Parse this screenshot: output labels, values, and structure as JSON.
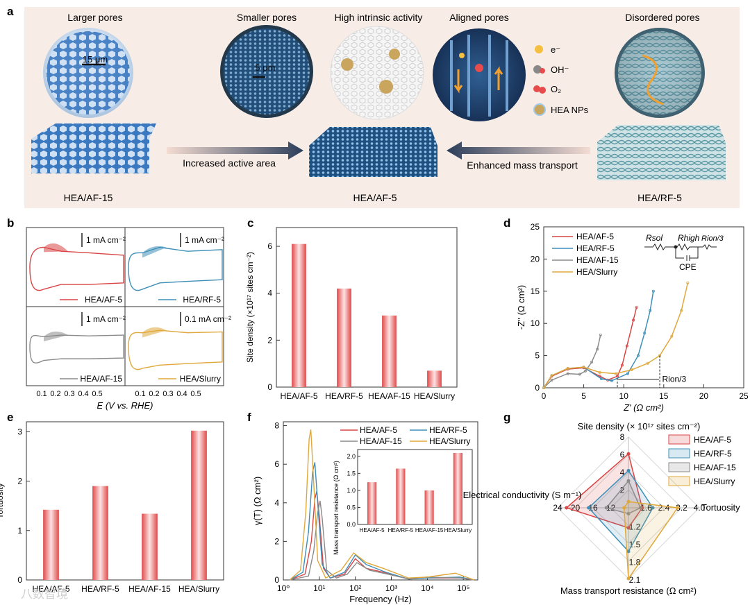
{
  "panel_a": {
    "label": "a",
    "top_labels": [
      "Larger pores",
      "Smaller pores",
      "High intrinsic activity",
      "Aligned pores",
      "Disordered pores"
    ],
    "scale_15": "15 μm",
    "scale_5": "5 μm",
    "legend": [
      "e⁻",
      "OH⁻",
      "O₂",
      "HEA NPs"
    ],
    "arrow_left": "Increased active area",
    "arrow_right": "Enhanced mass transport",
    "bottom_labels": [
      "HEA/AF-15",
      "HEA/AF-5",
      "HEA/RF-5"
    ],
    "colors": {
      "bg": "#f8ece6",
      "blue": "#3a78c0",
      "teal": "#6aa3ae"
    }
  },
  "panel_b": {
    "label": "b",
    "xaxis_title": "E (V vs. RHE)",
    "ticks": [
      "0.1",
      "0.2",
      "0.3",
      "0.4",
      "0.5"
    ],
    "subplots": [
      {
        "name": "HEA/AF-5",
        "scale": "1 mA cm⁻²",
        "color": "#d94545"
      },
      {
        "name": "HEA/RF-5",
        "scale": "1 mA cm⁻²",
        "color": "#3e8fb8"
      },
      {
        "name": "HEA/AF-15",
        "scale": "1 mA cm⁻²",
        "color": "#8a8a8a"
      },
      {
        "name": "HEA/Slurry",
        "scale": "0.1 mA cm⁻²",
        "color": "#e0a83a"
      }
    ]
  },
  "chart_data": [
    {
      "panel": "c",
      "type": "bar",
      "categories": [
        "HEA/AF-5",
        "HEA/RF-5",
        "HEA/AF-15",
        "HEA/Slurry"
      ],
      "values": [
        6.1,
        4.2,
        3.05,
        0.7
      ],
      "ylabel": "Site density (×10¹⁷ sites cm⁻²)",
      "ylim": [
        0,
        6.8
      ],
      "yticks": [
        "0",
        "2",
        "4",
        "6"
      ]
    },
    {
      "panel": "d",
      "type": "line",
      "xlabel": "Z' (Ω cm²)",
      "ylabel": "-Z'' (Ω cm²)",
      "xlim": [
        0,
        25
      ],
      "ylim": [
        0,
        25
      ],
      "xticks": [
        "0",
        "5",
        "10",
        "15",
        "20",
        "25"
      ],
      "yticks": [
        "0",
        "5",
        "10",
        "15",
        "20",
        "25"
      ],
      "series": [
        {
          "name": "HEA/AF-5",
          "color": "#d94545",
          "points": [
            [
              0,
              0
            ],
            [
              1,
              1.8
            ],
            [
              3,
              2.9
            ],
            [
              5,
              3.1
            ],
            [
              7,
              1.8
            ],
            [
              8,
              1.2
            ],
            [
              9.2,
              1.8
            ],
            [
              9.8,
              3.5
            ],
            [
              10.4,
              6.5
            ],
            [
              11.2,
              10.5
            ],
            [
              11.6,
              12.5
            ]
          ]
        },
        {
          "name": "HEA/RF-5",
          "color": "#3e8fb8",
          "points": [
            [
              0,
              0
            ],
            [
              1,
              1.9
            ],
            [
              3,
              3.0
            ],
            [
              5,
              3.2
            ],
            [
              7.2,
              1.4
            ],
            [
              8.5,
              1.1
            ],
            [
              10.5,
              2.2
            ],
            [
              11.8,
              5
            ],
            [
              12.6,
              8.5
            ],
            [
              13.3,
              12
            ],
            [
              13.7,
              15
            ]
          ]
        },
        {
          "name": "HEA/AF-15",
          "color": "#8a8a8a",
          "points": [
            [
              0,
              0
            ],
            [
              1,
              1.2
            ],
            [
              3,
              2.2
            ],
            [
              4.5,
              2.1
            ],
            [
              5.2,
              2.6
            ],
            [
              6,
              4
            ],
            [
              6.7,
              6
            ],
            [
              7.1,
              8.2
            ]
          ]
        },
        {
          "name": "HEA/Slurry",
          "color": "#e0a83a",
          "points": [
            [
              0,
              0
            ],
            [
              1,
              1.9
            ],
            [
              3,
              3.0
            ],
            [
              5,
              3.2
            ],
            [
              7,
              2.4
            ],
            [
              9,
              2.2
            ],
            [
              11,
              2.8
            ],
            [
              13,
              3.8
            ],
            [
              14.5,
              5
            ],
            [
              16,
              8
            ],
            [
              17.2,
              12
            ],
            [
              18,
              16.3
            ]
          ]
        }
      ],
      "annotation": "Rion/3",
      "circuit": {
        "labels": [
          "Rsol",
          "Rhigh",
          "Rion/3",
          "CPE"
        ]
      }
    },
    {
      "panel": "e",
      "type": "bar",
      "categories": [
        "HEA/AF-5",
        "HEA/RF-5",
        "HEA/AF-15",
        "HEA/Slurry"
      ],
      "values": [
        1.42,
        1.9,
        1.34,
        3.02
      ],
      "ylabel": "Tortuosity",
      "ylim": [
        0,
        3.2
      ],
      "yticks": [
        "0",
        "1",
        "2",
        "3"
      ]
    },
    {
      "panel": "f",
      "type": "line",
      "xlabel": "Frequency (Hz)",
      "ylabel": "γ(T) (Ω cm²)",
      "ylim": [
        0,
        8.2
      ],
      "xticks": [
        "10⁰",
        "10¹",
        "10²",
        "10³",
        "10⁴",
        "10⁵"
      ],
      "yticks": [
        "0",
        "2",
        "4",
        "6",
        "8"
      ],
      "xscale": "log",
      "series": [
        {
          "name": "HEA/AF-5",
          "color": "#d94545",
          "points": [
            [
              1.5,
              0
            ],
            [
              4,
              0.3
            ],
            [
              6,
              2
            ],
            [
              7.5,
              4.2
            ],
            [
              8.5,
              4.6
            ],
            [
              10,
              3.3
            ],
            [
              13,
              0.6
            ],
            [
              20,
              0.1
            ],
            [
              50,
              0.3
            ],
            [
              100,
              1.1
            ],
            [
              200,
              0.6
            ],
            [
              600,
              0.4
            ],
            [
              3000,
              0.05
            ],
            [
              10000,
              0.1
            ],
            [
              80000,
              0.1
            ],
            [
              200000,
              0
            ]
          ]
        },
        {
          "name": "HEA/RF-5",
          "color": "#3e8fb8",
          "points": [
            [
              1.5,
              0
            ],
            [
              3.5,
              0.4
            ],
            [
              5,
              2.5
            ],
            [
              6.5,
              5.6
            ],
            [
              7.5,
              6.1
            ],
            [
              9,
              4
            ],
            [
              12,
              0.8
            ],
            [
              20,
              0.1
            ],
            [
              50,
              0.4
            ],
            [
              100,
              1.3
            ],
            [
              200,
              0.8
            ],
            [
              700,
              0.4
            ],
            [
              3000,
              0.05
            ],
            [
              10000,
              0.1
            ],
            [
              80000,
              0.15
            ],
            [
              200000,
              0
            ]
          ]
        },
        {
          "name": "HEA/AF-15",
          "color": "#8a8a8a",
          "points": [
            [
              1.5,
              0
            ],
            [
              5,
              0.2
            ],
            [
              7,
              1.5
            ],
            [
              9,
              3.5
            ],
            [
              10.5,
              4.1
            ],
            [
              12,
              3.2
            ],
            [
              16,
              0.5
            ],
            [
              30,
              0.1
            ],
            [
              60,
              0.3
            ],
            [
              110,
              0.9
            ],
            [
              250,
              0.5
            ],
            [
              800,
              0.3
            ],
            [
              3000,
              0.05
            ],
            [
              10000,
              0.15
            ],
            [
              80000,
              0.1
            ],
            [
              200000,
              0
            ]
          ]
        },
        {
          "name": "HEA/Slurry",
          "color": "#e0a83a",
          "points": [
            [
              1.5,
              0
            ],
            [
              3,
              0.5
            ],
            [
              4.2,
              3.5
            ],
            [
              5.2,
              7.3
            ],
            [
              5.8,
              7.8
            ],
            [
              7,
              5
            ],
            [
              9,
              1
            ],
            [
              15,
              0.1
            ],
            [
              40,
              0.5
            ],
            [
              90,
              1.4
            ],
            [
              200,
              0.9
            ],
            [
              600,
              0.6
            ],
            [
              3000,
              0.1
            ],
            [
              10000,
              0.15
            ],
            [
              60000,
              0.35
            ],
            [
              200000,
              0
            ]
          ]
        }
      ],
      "inset": {
        "ylabel": "Mass transport resistance (Ω cm²)",
        "categories": [
          "HEA/AF-5",
          "HEA/RF-5",
          "HEA/AF-15",
          "HEA/Slurry"
        ],
        "values": [
          1.24,
          1.64,
          1.0,
          2.1
        ],
        "ylim": [
          0,
          2.2
        ],
        "yticks": [
          "0.0",
          "0.5",
          "1.0",
          "1.5",
          "2.0"
        ]
      }
    },
    {
      "panel": "g",
      "type": "radar",
      "axes": [
        {
          "name": "Site density (× 10¹⁷ sites cm⁻²)",
          "ticks": [
            "2",
            "4",
            "6",
            "8"
          ]
        },
        {
          "name": "Tortuosity",
          "ticks": [
            "1.6",
            "2.4",
            "3.2",
            "4.0"
          ]
        },
        {
          "name": "Mass transport resistance (Ω cm²)",
          "ticks": [
            "1.2",
            "1.5",
            "1.8",
            "2.1"
          ]
        },
        {
          "name": "Electrical conductivity (S m⁻¹)",
          "ticks": [
            "12",
            "16",
            "20",
            "24"
          ]
        }
      ],
      "series": [
        {
          "name": "HEA/AF-5",
          "color": "#d94545",
          "values": [
            6.1,
            1.42,
            1.24,
            22
          ]
        },
        {
          "name": "HEA/RF-5",
          "color": "#3e8fb8",
          "values": [
            4.2,
            1.9,
            1.64,
            17
          ]
        },
        {
          "name": "HEA/AF-15",
          "color": "#8a8a8a",
          "values": [
            3.05,
            1.34,
            1.0,
            13
          ]
        },
        {
          "name": "HEA/Slurry",
          "color": "#e0a83a",
          "values": [
            0.7,
            3.02,
            2.1,
            9
          ]
        }
      ]
    }
  ],
  "panel_labels": {
    "c": "c",
    "d": "d",
    "e": "e",
    "f": "f",
    "g": "g"
  },
  "watermark": "八数智境"
}
